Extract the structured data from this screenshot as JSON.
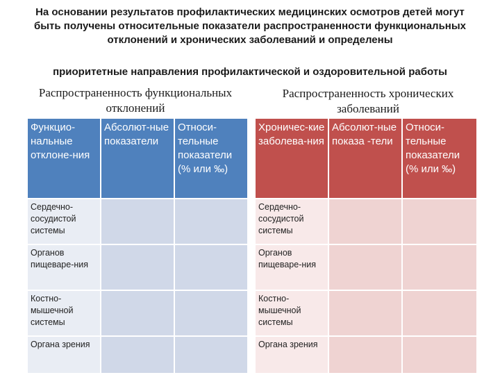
{
  "intro": "На основании результатов профилактических медицинских осмотров детей могут быть получены относительные показатели распространенности функциональных отклонений и хронических заболеваний и определены",
  "priority": "приоритетные направления профилактической и оздоровительной работы",
  "left": {
    "title": "Распространенность функциональных отклонений",
    "headers": [
      "Функцио-нальные отклоне-ния",
      "Абсолют-ные показатели",
      "Относи-тельные показатели (% или ‰)"
    ],
    "rows": [
      [
        "Сердечно-сосудистой системы",
        "",
        ""
      ],
      [
        "Органов пищеваре-ния",
        "",
        ""
      ],
      [
        "Костно-мышечной системы",
        "",
        ""
      ],
      [
        "Органа зрения",
        "",
        ""
      ]
    ]
  },
  "right": {
    "title": "Распространенность хронических заболеваний",
    "headers": [
      "Хроничес-кие заболева-ния",
      "Абсолют-ные показа -тели",
      "Относи-тельные показатели (% или ‰)"
    ],
    "rows": [
      [
        "Сердечно-сосудистой системы",
        "",
        ""
      ],
      [
        "Органов пищеваре-ния",
        "",
        ""
      ],
      [
        "Костно-мышечной системы",
        "",
        ""
      ],
      [
        "Органа зрения",
        "",
        ""
      ]
    ]
  },
  "colors": {
    "left_header": "#4f81bd",
    "left_cell": "#d0d8e8",
    "right_header": "#c0504d",
    "right_cell": "#efd3d2"
  }
}
